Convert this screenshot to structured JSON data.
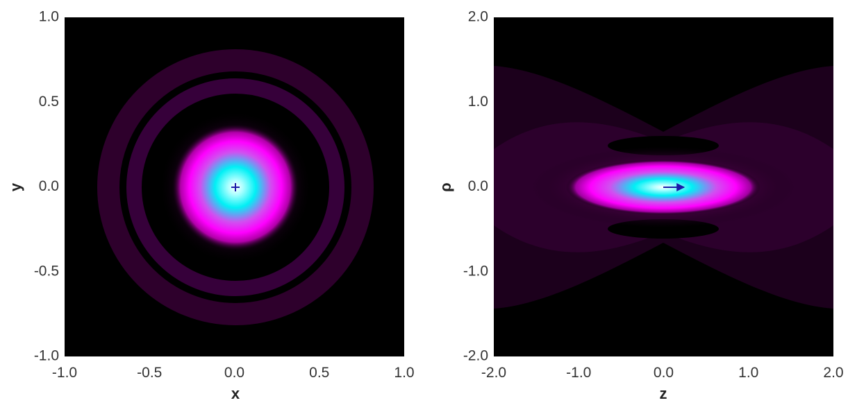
{
  "chart_data": [
    {
      "type": "heatmap",
      "xlabel": "x",
      "ylabel": "y",
      "xlim": [
        -1.0,
        1.0
      ],
      "ylim": [
        -1.0,
        1.0
      ],
      "xticks": [
        "-1.0",
        "-0.5",
        "0.0",
        "0.5",
        "1.0"
      ],
      "yticks": [
        "1.0",
        "0.5",
        "0.0",
        "-0.5",
        "-1.0"
      ],
      "xtick_values": [
        -1.0,
        -0.5,
        0.0,
        0.5,
        1.0
      ],
      "ytick_values": [
        1.0,
        0.5,
        0.0,
        -0.5,
        -1.0
      ],
      "grid": false,
      "colormap": [
        "#000000",
        "#3a0038",
        "#ff00ff",
        "#00ffff",
        "#ffffff"
      ],
      "distribution": {
        "shape": "circular",
        "center": [
          0.0,
          0.0
        ],
        "core_radius": 0.35,
        "rings": [
          0.53,
          0.72
        ]
      },
      "marker": {
        "type": "plus",
        "at": [
          0.0,
          0.0
        ],
        "color": "#1a1aa8"
      }
    },
    {
      "type": "heatmap",
      "xlabel": "z",
      "ylabel": "ρ",
      "xlim": [
        -2.0,
        2.0
      ],
      "ylim": [
        -2.0,
        2.0
      ],
      "xticks": [
        "-2.0",
        "-1.0",
        "0.0",
        "1.0",
        "2.0"
      ],
      "yticks": [
        "2.0",
        "1.0",
        "0.0",
        "-1.0",
        "-2.0"
      ],
      "xtick_values": [
        -2.0,
        -1.0,
        0.0,
        1.0,
        2.0
      ],
      "ytick_values": [
        2.0,
        1.0,
        0.0,
        -1.0,
        -2.0
      ],
      "grid": false,
      "colormap": [
        "#000000",
        "#3a0038",
        "#ff00ff",
        "#00ffff",
        "#ffffff"
      ],
      "distribution": {
        "shape": "elongated",
        "center": [
          0.0,
          0.0
        ],
        "core_half_length": 1.1,
        "core_half_width": 0.3
      },
      "marker": {
        "type": "arrow",
        "from": [
          0.0,
          0.0
        ],
        "to": [
          0.25,
          0.0
        ],
        "color": "#1a1aa8"
      }
    }
  ]
}
